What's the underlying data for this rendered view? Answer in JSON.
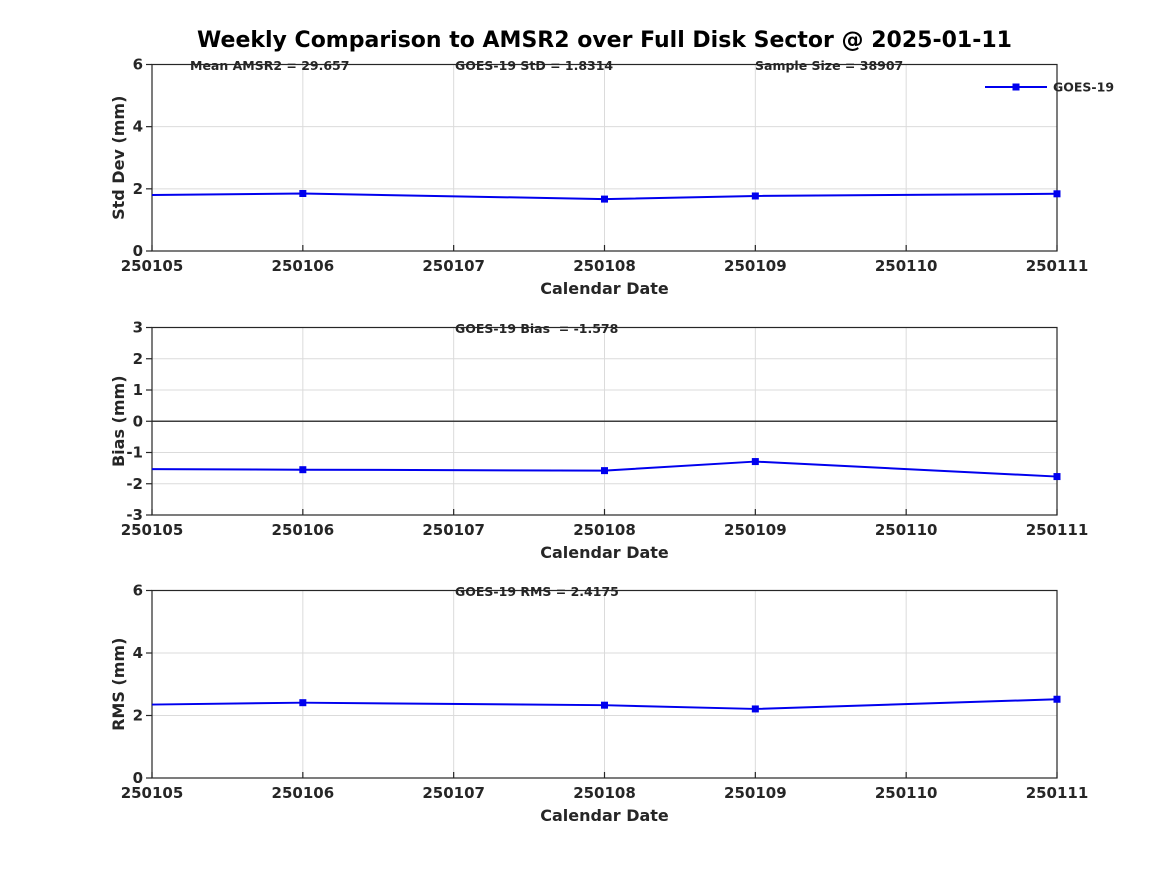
{
  "title": "Weekly Comparison to AMSR2 over Full Disk Sector @ 2025-01-11",
  "legend": {
    "label": "GOES-19",
    "marker": "filled-square"
  },
  "colors": {
    "series": "#0000EE",
    "grid": "#DBDBDB",
    "axis": "#262626",
    "text": "#262626",
    "title_text": "#000000",
    "zero_line": "#3D3D3D",
    "background": "#FFFFFF"
  },
  "chart_data": [
    {
      "type": "line",
      "panel": "std-dev",
      "ylabel": "Std Dev (mm)",
      "xlabel": "Calendar Date",
      "ylim": [
        0,
        6
      ],
      "yticks": [
        0,
        2,
        4,
        6
      ],
      "xlim": [
        250105,
        250111
      ],
      "xticks": [
        "250105",
        "250106",
        "250107",
        "250108",
        "250109",
        "250110",
        "250111"
      ],
      "grid": true,
      "zero_line": false,
      "legend_visible": true,
      "annotations": [
        "Mean AMSR2 = 29.657",
        "GOES-19 StD = 1.8314",
        "Sample Size = 38907"
      ],
      "series": [
        {
          "name": "GOES-19",
          "x": [
            250105,
            250106,
            250108,
            250109,
            250111
          ],
          "y": [
            1.8,
            1.85,
            1.67,
            1.77,
            1.84
          ],
          "markers": [
            false,
            true,
            true,
            true,
            true
          ]
        }
      ]
    },
    {
      "type": "line",
      "panel": "bias",
      "ylabel": "Bias (mm)",
      "xlabel": "Calendar Date",
      "ylim": [
        -3,
        3
      ],
      "yticks": [
        -3,
        -2,
        -1,
        0,
        1,
        2,
        3
      ],
      "xlim": [
        250105,
        250111
      ],
      "xticks": [
        "250105",
        "250106",
        "250107",
        "250108",
        "250109",
        "250110",
        "250111"
      ],
      "grid": true,
      "zero_line": true,
      "legend_visible": false,
      "annotations": [
        "GOES-19 Bias  = -1.578"
      ],
      "series": [
        {
          "name": "GOES-19",
          "x": [
            250105,
            250106,
            250108,
            250109,
            250111
          ],
          "y": [
            -1.53,
            -1.55,
            -1.58,
            -1.29,
            -1.77
          ],
          "markers": [
            false,
            true,
            true,
            true,
            true
          ]
        }
      ]
    },
    {
      "type": "line",
      "panel": "rms",
      "ylabel": "RMS (mm)",
      "xlabel": "Calendar Date",
      "ylim": [
        0,
        6
      ],
      "yticks": [
        0,
        2,
        4,
        6
      ],
      "xlim": [
        250105,
        250111
      ],
      "xticks": [
        "250105",
        "250106",
        "250107",
        "250108",
        "250109",
        "250110",
        "250111"
      ],
      "grid": true,
      "zero_line": false,
      "legend_visible": false,
      "annotations": [
        "GOES-19 RMS = 2.4175"
      ],
      "series": [
        {
          "name": "GOES-19",
          "x": [
            250105,
            250106,
            250108,
            250109,
            250111
          ],
          "y": [
            2.35,
            2.41,
            2.33,
            2.21,
            2.52
          ],
          "markers": [
            false,
            true,
            true,
            true,
            true
          ]
        }
      ]
    }
  ]
}
